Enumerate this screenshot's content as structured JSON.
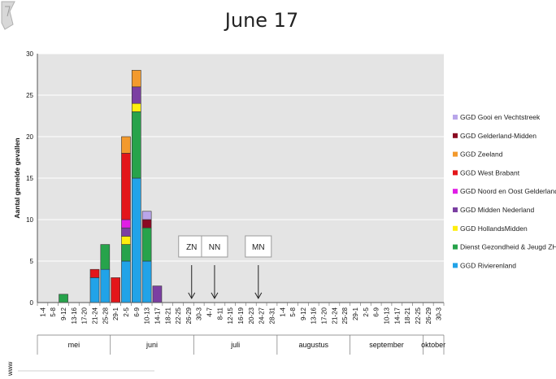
{
  "slide": {
    "title": "June 17",
    "footer_mark": "www"
  },
  "colors": {
    "plot_bg": "#e4e4e4",
    "grid": "#ffffff",
    "series": [
      "#b9a6ea",
      "#8b0a22",
      "#f39a2d",
      "#e3161a",
      "#e01ee6",
      "#7b3fa2",
      "#ffee0e",
      "#27a34b",
      "#21a3e8"
    ]
  },
  "chart_data": {
    "type": "bar",
    "stacked": true,
    "ylabel": "Aantal gemelde gevallen",
    "ylim": [
      0,
      30
    ],
    "yticks": [
      0,
      5,
      10,
      15,
      20,
      25,
      30
    ],
    "grid": true,
    "legend_position": "right",
    "categories": [
      "1-4",
      "5-8",
      "9-12",
      "13-16",
      "17-20",
      "21-24",
      "25-28",
      "29-1",
      "2-5",
      "6-9",
      "10-13",
      "14-17",
      "18-21",
      "22-25",
      "26-29",
      "30-3",
      "4-7",
      "8-11",
      "12-15",
      "16-19",
      "20-23",
      "24-27",
      "28-31",
      "1-4",
      "5-8",
      "9-12",
      "13-16",
      "17-20",
      "21-24",
      "25-28",
      "29-1",
      "2-5",
      "6-9",
      "10-13",
      "14-17",
      "18-21",
      "22-25",
      "26-29",
      "30-3"
    ],
    "months": [
      {
        "label": "mei",
        "start": 0,
        "end": 7
      },
      {
        "label": "juni",
        "start": 7,
        "end": 15
      },
      {
        "label": "juli",
        "start": 15,
        "end": 23
      },
      {
        "label": "augustus",
        "start": 23,
        "end": 30
      },
      {
        "label": "september",
        "start": 30,
        "end": 37
      },
      {
        "label": "oktober",
        "start": 37,
        "end": 39
      }
    ],
    "series": [
      {
        "name": "GGD Gooi en Vechtstreek",
        "values": [
          0,
          0,
          0,
          0,
          0,
          0,
          0,
          0,
          0,
          0,
          1,
          0,
          0,
          0,
          0,
          0,
          0,
          0,
          0,
          0,
          0,
          0,
          0,
          0,
          0,
          0,
          0,
          0,
          0,
          0,
          0,
          0,
          0,
          0,
          0,
          0,
          0,
          0,
          0
        ]
      },
      {
        "name": "GGD Gelderland-Midden",
        "values": [
          0,
          0,
          0,
          0,
          0,
          0,
          0,
          0,
          0,
          0,
          1,
          0,
          0,
          0,
          0,
          0,
          0,
          0,
          0,
          0,
          0,
          0,
          0,
          0,
          0,
          0,
          0,
          0,
          0,
          0,
          0,
          0,
          0,
          0,
          0,
          0,
          0,
          0,
          0
        ]
      },
      {
        "name": "GGD Zeeland",
        "values": [
          0,
          0,
          0,
          0,
          0,
          0,
          0,
          0,
          2,
          2,
          0,
          0,
          0,
          0,
          0,
          0,
          0,
          0,
          0,
          0,
          0,
          0,
          0,
          0,
          0,
          0,
          0,
          0,
          0,
          0,
          0,
          0,
          0,
          0,
          0,
          0,
          0,
          0,
          0
        ]
      },
      {
        "name": "GGD West Brabant",
        "values": [
          0,
          0,
          0,
          0,
          0,
          1,
          0,
          3,
          8,
          0,
          0,
          0,
          0,
          0,
          0,
          0,
          0,
          0,
          0,
          0,
          0,
          0,
          0,
          0,
          0,
          0,
          0,
          0,
          0,
          0,
          0,
          0,
          0,
          0,
          0,
          0,
          0,
          0,
          0
        ]
      },
      {
        "name": "GGD Noord en Oost Gelderland",
        "values": [
          0,
          0,
          0,
          0,
          0,
          0,
          0,
          0,
          1,
          0,
          0,
          0,
          0,
          0,
          0,
          0,
          0,
          0,
          0,
          0,
          0,
          0,
          0,
          0,
          0,
          0,
          0,
          0,
          0,
          0,
          0,
          0,
          0,
          0,
          0,
          0,
          0,
          0,
          0
        ]
      },
      {
        "name": "GGD Midden Nederland",
        "values": [
          0,
          0,
          0,
          0,
          0,
          0,
          0,
          0,
          1,
          2,
          0,
          2,
          0,
          0,
          0,
          0,
          0,
          0,
          0,
          0,
          0,
          0,
          0,
          0,
          0,
          0,
          0,
          0,
          0,
          0,
          0,
          0,
          0,
          0,
          0,
          0,
          0,
          0,
          0
        ]
      },
      {
        "name": "GGD HollandsMidden",
        "values": [
          0,
          0,
          0,
          0,
          0,
          0,
          0,
          0,
          1,
          1,
          0,
          0,
          0,
          0,
          0,
          0,
          0,
          0,
          0,
          0,
          0,
          0,
          0,
          0,
          0,
          0,
          0,
          0,
          0,
          0,
          0,
          0,
          0,
          0,
          0,
          0,
          0,
          0,
          0
        ]
      },
      {
        "name": "Dienst Gezondheid & Jeugd ZHZ",
        "values": [
          0,
          0,
          1,
          0,
          0,
          0,
          3,
          0,
          2,
          8,
          4,
          0,
          0,
          0,
          0,
          0,
          0,
          0,
          0,
          0,
          0,
          0,
          0,
          0,
          0,
          0,
          0,
          0,
          0,
          0,
          0,
          0,
          0,
          0,
          0,
          0,
          0,
          0,
          0
        ]
      },
      {
        "name": "GGD Rivierenland",
        "values": [
          0,
          0,
          0,
          0,
          0,
          3,
          4,
          0,
          5,
          15,
          5,
          0,
          0,
          0,
          0,
          0,
          0,
          0,
          0,
          0,
          0,
          0,
          0,
          0,
          0,
          0,
          0,
          0,
          0,
          0,
          0,
          0,
          0,
          0,
          0,
          0,
          0,
          0,
          0
        ]
      }
    ],
    "annotations": [
      {
        "label": "ZN",
        "category_index": 14.3,
        "arrow_to": 0.5
      },
      {
        "label": "NN",
        "category_index": 16.5,
        "arrow_to": 0.5
      },
      {
        "label": "MN",
        "category_index": 20.7,
        "arrow_to": 0.5
      }
    ]
  }
}
